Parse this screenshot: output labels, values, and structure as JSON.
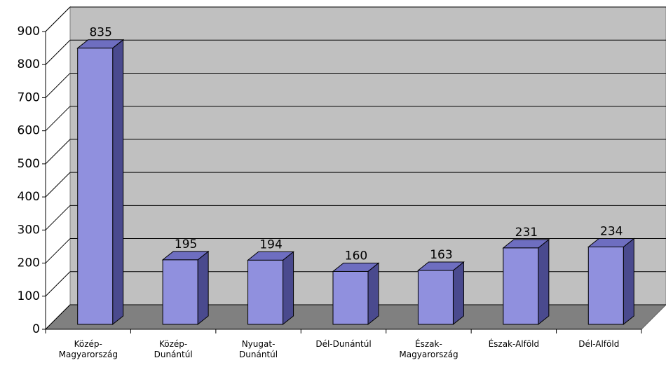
{
  "chart_data": {
    "type": "bar3d",
    "categories": [
      "Közép-Magyarország",
      "Közép-Dunántúl",
      "Nyugat-Dunántúl",
      "Dél-Dunántúl",
      "Észak-Magyarország",
      "Észak-Alföld",
      "Dél-Alföld"
    ],
    "values": [
      835,
      195,
      194,
      160,
      163,
      231,
      234
    ],
    "color": "#9090de",
    "ylim": [
      0,
      900
    ],
    "yticks": [
      0,
      100,
      200,
      300,
      400,
      500,
      600,
      700,
      800,
      900
    ],
    "grid": true
  }
}
